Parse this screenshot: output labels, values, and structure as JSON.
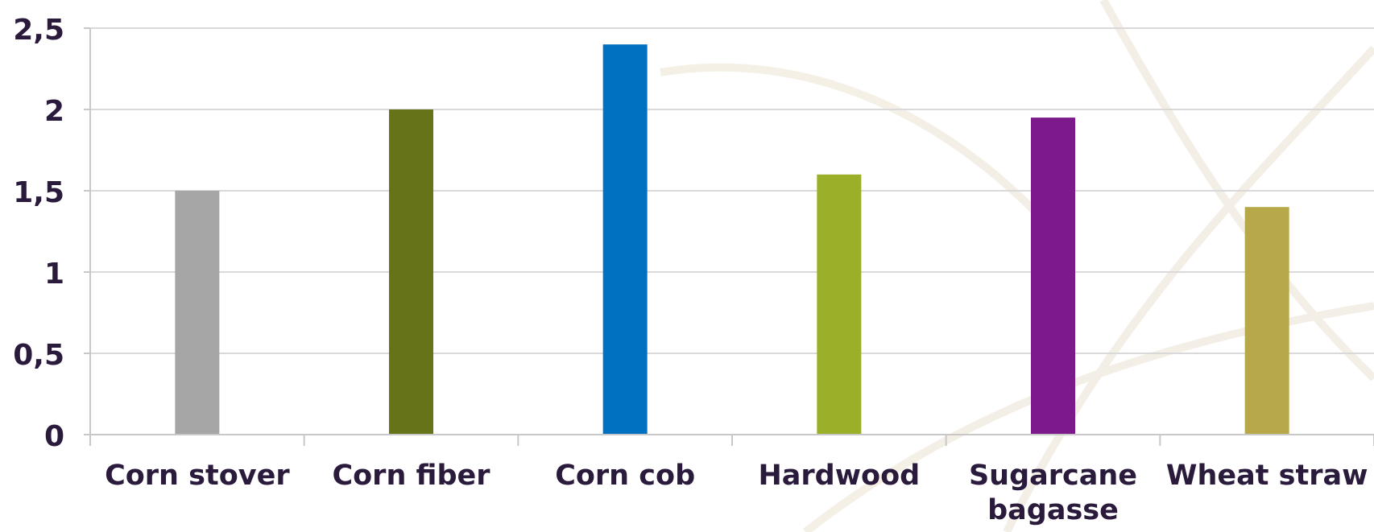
{
  "chart_data": {
    "type": "bar",
    "categories": [
      "Corn stover",
      "Corn fiber",
      "Corn cob",
      "Hardwood",
      "Sugarcane bagasse",
      "Wheat straw"
    ],
    "category_lines": [
      [
        "Corn stover"
      ],
      [
        "Corn fiber"
      ],
      [
        "Corn cob"
      ],
      [
        "Hardwood"
      ],
      [
        "Sugarcane",
        "bagasse"
      ],
      [
        "Wheat straw"
      ]
    ],
    "values": [
      1.5,
      2.0,
      2.4,
      1.6,
      1.95,
      1.4
    ],
    "bar_colors": [
      "#a6a6a6",
      "#667319",
      "#0070c0",
      "#9bb028",
      "#7c1a8c",
      "#b7a84a"
    ],
    "y_ticks": [
      "0",
      "0,5",
      "1",
      "1,5",
      "2",
      "2,5"
    ],
    "ylim": [
      0,
      2.5
    ],
    "grid": true,
    "legend": "none",
    "title": "",
    "xlabel": "",
    "ylabel": ""
  }
}
